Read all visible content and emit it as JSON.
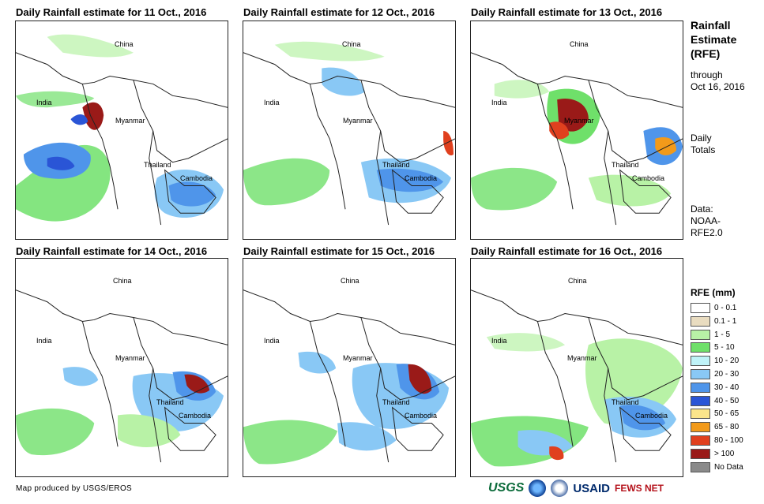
{
  "panels": [
    {
      "title": "Daily Rainfall estimate for 11 Oct., 2016"
    },
    {
      "title": "Daily Rainfall estimate for 12 Oct., 2016"
    },
    {
      "title": "Daily Rainfall estimate for 13 Oct., 2016"
    },
    {
      "title": "Daily Rainfall estimate for 14 Oct., 2016"
    },
    {
      "title": "Daily Rainfall estimate for 15 Oct., 2016"
    },
    {
      "title": "Daily Rainfall estimate for 16 Oct., 2016"
    }
  ],
  "labels": {
    "china": "China",
    "india": "India",
    "myanmar": "Myanmar",
    "thailand": "Thailand",
    "cambodia": "Cambodia"
  },
  "sidebar": {
    "title_line1": "Rainfall",
    "title_line2": "Estimate",
    "title_line3": "(RFE)",
    "through": "through",
    "date": "Oct 16, 2016",
    "daily": "Daily",
    "totals": "Totals",
    "data_label": "Data:",
    "data_source1": "NOAA-",
    "data_source2": "RFE2.0"
  },
  "legend": {
    "title": "RFE (mm)",
    "items": [
      {
        "label": "0 - 0.1",
        "color": "#ffffff"
      },
      {
        "label": "0.1 - 1",
        "color": "#e9dcc0"
      },
      {
        "label": "1 - 5",
        "color": "#b8f2a6"
      },
      {
        "label": "5 - 10",
        "color": "#6fe06a"
      },
      {
        "label": "10 - 20",
        "color": "#bff3f8"
      },
      {
        "label": "20 - 30",
        "color": "#89c8f5"
      },
      {
        "label": "30 - 40",
        "color": "#4f95ea"
      },
      {
        "label": "40 - 50",
        "color": "#2a55d6"
      },
      {
        "label": "50 - 65",
        "color": "#fbe58b"
      },
      {
        "label": "65 - 80",
        "color": "#f29a1a"
      },
      {
        "label": "80 - 100",
        "color": "#e0401e"
      },
      {
        "label": "> 100",
        "color": "#9a1a18"
      },
      {
        "label": "No Data",
        "color": "#8a8a8a"
      }
    ]
  },
  "footer": "Map produced by USGS/EROS",
  "logos": {
    "usgs": "USGS",
    "usaid": "USAID",
    "fews": "FEWS NET"
  }
}
